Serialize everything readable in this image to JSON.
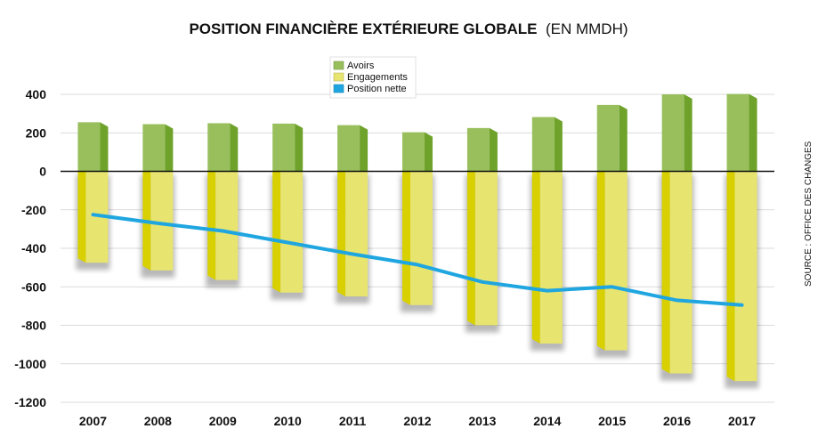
{
  "chart_data": {
    "type": "bar",
    "title": "POSITION FINANCIÈRE EXTÉRIEURE GLOBALE",
    "subtitle": "(EN MMDH)",
    "categories": [
      "2007",
      "2008",
      "2009",
      "2010",
      "2011",
      "2012",
      "2013",
      "2014",
      "2015",
      "2016",
      "2017"
    ],
    "series": [
      {
        "name": "Avoirs",
        "kind": "bar",
        "color": "#98bf5c",
        "values": [
          255,
          245,
          250,
          248,
          240,
          203,
          225,
          282,
          345,
          400,
          402
        ]
      },
      {
        "name": "Engagements",
        "kind": "bar",
        "color": "#e8e470",
        "values": [
          -475,
          -515,
          -565,
          -630,
          -650,
          -695,
          -800,
          -895,
          -930,
          -1050,
          -1090
        ]
      },
      {
        "name": "Position nette",
        "kind": "line",
        "color": "#1fa6e0",
        "values": [
          -225,
          -270,
          -310,
          -370,
          -430,
          -485,
          -575,
          -620,
          -600,
          -670,
          -695
        ]
      }
    ],
    "yticks": [
      400,
      200,
      0,
      -200,
      -400,
      -600,
      -800,
      -1000,
      -1200
    ],
    "ylim": [
      -1200,
      480
    ],
    "grid": true,
    "legend_position": "top-left",
    "source": "SOURCE : OFFICE DES CHANGES"
  }
}
